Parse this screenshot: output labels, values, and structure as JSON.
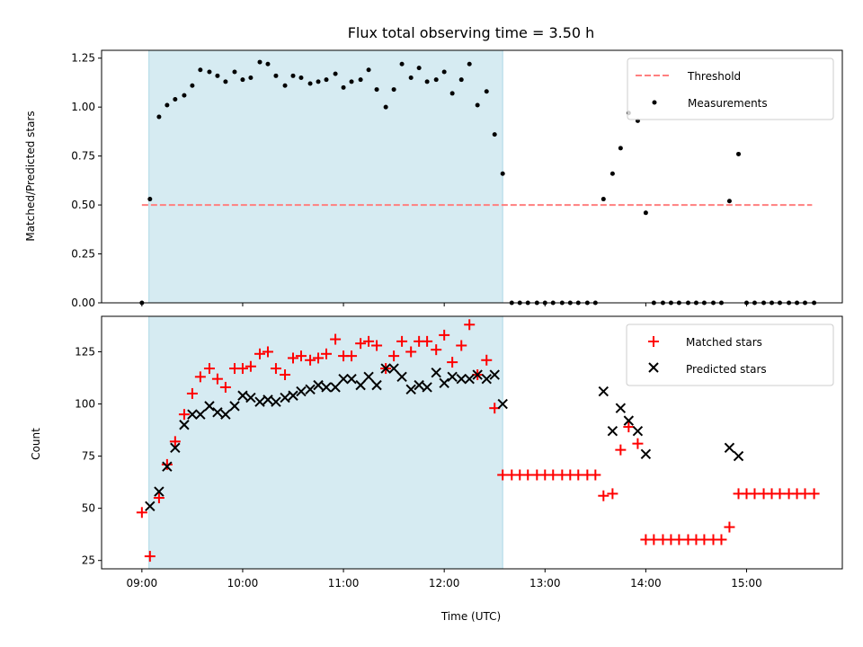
{
  "chart_data": [
    {
      "type": "scatter",
      "title": "Flux total observing time = 3.50 h",
      "xlabel": "",
      "ylabel": "Matched/Predicted stars",
      "xlim": [
        8.6,
        15.95
      ],
      "ylim": [
        0.0,
        1.29
      ],
      "yticks": [
        "0.00",
        "0.25",
        "0.50",
        "0.75",
        "1.00",
        "1.25"
      ],
      "xticks_shown": false,
      "highlight_span": [
        9.07,
        12.58
      ],
      "threshold": {
        "name": "Threshold",
        "value": 0.5,
        "x_range": [
          9.0,
          15.65
        ],
        "color": "#ff7f7f",
        "style": "dashed"
      },
      "series": [
        {
          "name": "Measurements",
          "marker": "dot",
          "color": "#000000",
          "x": [
            9.0,
            9.08,
            9.17,
            9.25,
            9.33,
            9.42,
            9.5,
            9.58,
            9.67,
            9.75,
            9.83,
            9.92,
            10.0,
            10.08,
            10.17,
            10.25,
            10.33,
            10.42,
            10.5,
            10.58,
            10.67,
            10.75,
            10.83,
            10.92,
            11.0,
            11.08,
            11.17,
            11.25,
            11.33,
            11.42,
            11.5,
            11.58,
            11.67,
            11.75,
            11.83,
            11.92,
            12.0,
            12.08,
            12.17,
            12.25,
            12.33,
            12.42,
            12.5,
            12.58,
            12.67,
            12.75,
            12.83,
            12.92,
            13.0,
            13.08,
            13.17,
            13.25,
            13.33,
            13.42,
            13.5,
            13.58,
            13.67,
            13.75,
            13.83,
            13.92,
            14.0,
            14.08,
            14.17,
            14.25,
            14.33,
            14.42,
            14.5,
            14.58,
            14.67,
            14.75,
            14.83,
            14.92,
            15.0,
            15.08,
            15.17,
            15.25,
            15.33,
            15.42,
            15.5,
            15.58,
            15.67
          ],
          "y": [
            0.0,
            0.53,
            0.95,
            1.01,
            1.04,
            1.06,
            1.11,
            1.19,
            1.18,
            1.16,
            1.13,
            1.18,
            1.14,
            1.15,
            1.23,
            1.22,
            1.16,
            1.11,
            1.16,
            1.15,
            1.12,
            1.13,
            1.14,
            1.17,
            1.1,
            1.13,
            1.14,
            1.19,
            1.09,
            1.0,
            1.09,
            1.22,
            1.15,
            1.2,
            1.13,
            1.14,
            1.18,
            1.07,
            1.14,
            1.22,
            1.01,
            1.08,
            0.86,
            0.66,
            0.0,
            0.0,
            0.0,
            0.0,
            0.0,
            0.0,
            0.0,
            0.0,
            0.0,
            0.0,
            0.0,
            0.53,
            0.66,
            0.79,
            0.97,
            0.93,
            0.46,
            0.0,
            0.0,
            0.0,
            0.0,
            0.0,
            0.0,
            0.0,
            0.0,
            0.0,
            0.52,
            0.76,
            0.0,
            0.0,
            0.0,
            0.0,
            0.0,
            0.0,
            0.0,
            0.0,
            0.0
          ]
        }
      ],
      "legend_position": "top-right"
    },
    {
      "type": "scatter",
      "title": "",
      "xlabel": "Time (UTC)",
      "ylabel": "Count",
      "xlim": [
        8.6,
        15.95
      ],
      "ylim": [
        21,
        142
      ],
      "yticks": [
        "25",
        "50",
        "75",
        "100",
        "125"
      ],
      "xticks": [
        "09:00",
        "10:00",
        "11:00",
        "12:00",
        "13:00",
        "14:00",
        "15:00"
      ],
      "highlight_span": [
        9.07,
        12.58
      ],
      "series": [
        {
          "name": "Matched stars",
          "marker": "plus",
          "color": "#ff0000",
          "x": [
            9.0,
            9.08,
            9.17,
            9.25,
            9.33,
            9.42,
            9.5,
            9.58,
            9.67,
            9.75,
            9.83,
            9.92,
            10.0,
            10.08,
            10.17,
            10.25,
            10.33,
            10.42,
            10.5,
            10.58,
            10.67,
            10.75,
            10.83,
            10.92,
            11.0,
            11.08,
            11.17,
            11.25,
            11.33,
            11.42,
            11.5,
            11.58,
            11.67,
            11.75,
            11.83,
            11.92,
            12.0,
            12.08,
            12.17,
            12.25,
            12.33,
            12.42,
            12.5,
            12.58,
            12.67,
            12.75,
            12.83,
            12.92,
            13.0,
            13.08,
            13.17,
            13.25,
            13.33,
            13.42,
            13.5,
            13.58,
            13.67,
            13.75,
            13.83,
            13.92,
            14.0,
            14.08,
            14.17,
            14.25,
            14.33,
            14.42,
            14.5,
            14.58,
            14.67,
            14.75,
            14.83,
            14.92,
            15.0,
            15.08,
            15.17,
            15.25,
            15.33,
            15.42,
            15.5,
            15.58,
            15.67
          ],
          "y": [
            48,
            27,
            55,
            71,
            82,
            95,
            105,
            113,
            117,
            112,
            108,
            117,
            117,
            118,
            124,
            125,
            117,
            114,
            122,
            123,
            121,
            122,
            124,
            131,
            123,
            123,
            129,
            130,
            128,
            117,
            123,
            130,
            125,
            130,
            130,
            126,
            133,
            120,
            128,
            138,
            114,
            121,
            98,
            66,
            66,
            66,
            66,
            66,
            66,
            66,
            66,
            66,
            66,
            66,
            66,
            56,
            57,
            78,
            89,
            81,
            35,
            35,
            35,
            35,
            35,
            35,
            35,
            35,
            35,
            35,
            41,
            57,
            57,
            57,
            57,
            57,
            57,
            57,
            57,
            57,
            57
          ]
        },
        {
          "name": "Predicted stars",
          "marker": "x",
          "color": "#000000",
          "x": [
            9.08,
            9.17,
            9.25,
            9.33,
            9.42,
            9.5,
            9.58,
            9.67,
            9.75,
            9.83,
            9.92,
            10.0,
            10.08,
            10.17,
            10.25,
            10.33,
            10.42,
            10.5,
            10.58,
            10.67,
            10.75,
            10.83,
            10.92,
            11.0,
            11.08,
            11.17,
            11.25,
            11.33,
            11.42,
            11.5,
            11.58,
            11.67,
            11.75,
            11.83,
            11.92,
            12.0,
            12.08,
            12.17,
            12.25,
            12.33,
            12.42,
            12.5,
            12.58,
            13.58,
            13.67,
            13.75,
            13.83,
            13.92,
            14.0,
            14.83,
            14.92
          ],
          "y": [
            51,
            58,
            70,
            79,
            90,
            95,
            95,
            99,
            96,
            95,
            99,
            104,
            103,
            101,
            102,
            101,
            103,
            104,
            106,
            107,
            109,
            108,
            108,
            112,
            112,
            109,
            113,
            109,
            117,
            117,
            113,
            107,
            109,
            108,
            115,
            110,
            113,
            112,
            112,
            114,
            112,
            114,
            100,
            106,
            87,
            98,
            92,
            87,
            76,
            79,
            75
          ]
        }
      ],
      "legend_position": "top-right"
    }
  ]
}
